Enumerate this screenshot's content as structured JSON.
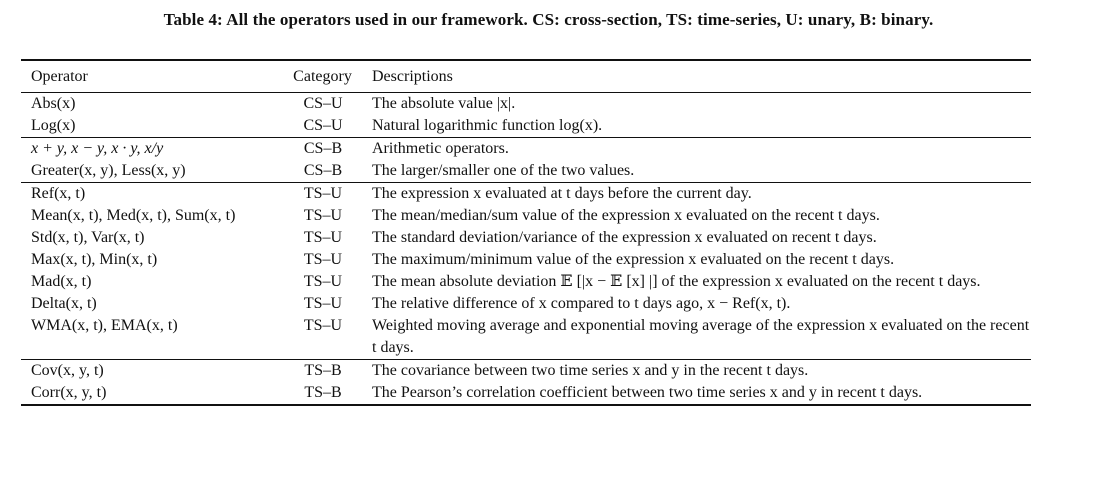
{
  "caption": "Table 4: All the operators used in our framework. CS: cross-section, TS: time-series, U: unary, B: binary.",
  "headers": {
    "operator": "Operator",
    "category": "Category",
    "description": "Descriptions"
  },
  "rows": [
    {
      "operator": "Abs(x)",
      "category": "CS–U",
      "description": "The absolute value |x|."
    },
    {
      "operator": "Log(x)",
      "category": "CS–U",
      "description": "Natural logarithmic function log(x)."
    },
    {
      "operator": "x + y, x − y, x · y, x/y",
      "category": "CS–B",
      "description": "Arithmetic operators."
    },
    {
      "operator": "Greater(x, y), Less(x, y)",
      "category": "CS–B",
      "description": "The larger/smaller one of the two values."
    },
    {
      "operator": "Ref(x, t)",
      "category": "TS–U",
      "description": "The expression x evaluated at t days before the current day."
    },
    {
      "operator": "Mean(x, t), Med(x, t), Sum(x, t)",
      "category": "TS–U",
      "description": "The mean/median/sum value of the expression x evaluated on the recent t days."
    },
    {
      "operator": "Std(x, t), Var(x, t)",
      "category": "TS–U",
      "description": "The standard deviation/variance of the expression x evaluated on recent t days."
    },
    {
      "operator": "Max(x, t), Min(x, t)",
      "category": "TS–U",
      "description": "The maximum/minimum value of the expression x evaluated on the recent t days."
    },
    {
      "operator": "Mad(x, t)",
      "category": "TS–U",
      "description": "The mean absolute deviation 𝔼 [|x − 𝔼 [x] |] of the expression x evaluated on the recent t days."
    },
    {
      "operator": "Delta(x, t)",
      "category": "TS–U",
      "description": "The relative difference of x compared to t days ago, x − Ref(x, t)."
    },
    {
      "operator": "WMA(x, t), EMA(x, t)",
      "category": "TS–U",
      "description": "Weighted moving average and exponential moving average of the expression x evaluated on the recent t days."
    },
    {
      "operator": "Cov(x, y, t)",
      "category": "TS–B",
      "description": "The covariance between two time series x and y in the recent t days."
    },
    {
      "operator": "Corr(x, y, t)",
      "category": "TS–B",
      "description": "The Pearson’s correlation coefficient between two time series x and y in recent t days."
    }
  ]
}
